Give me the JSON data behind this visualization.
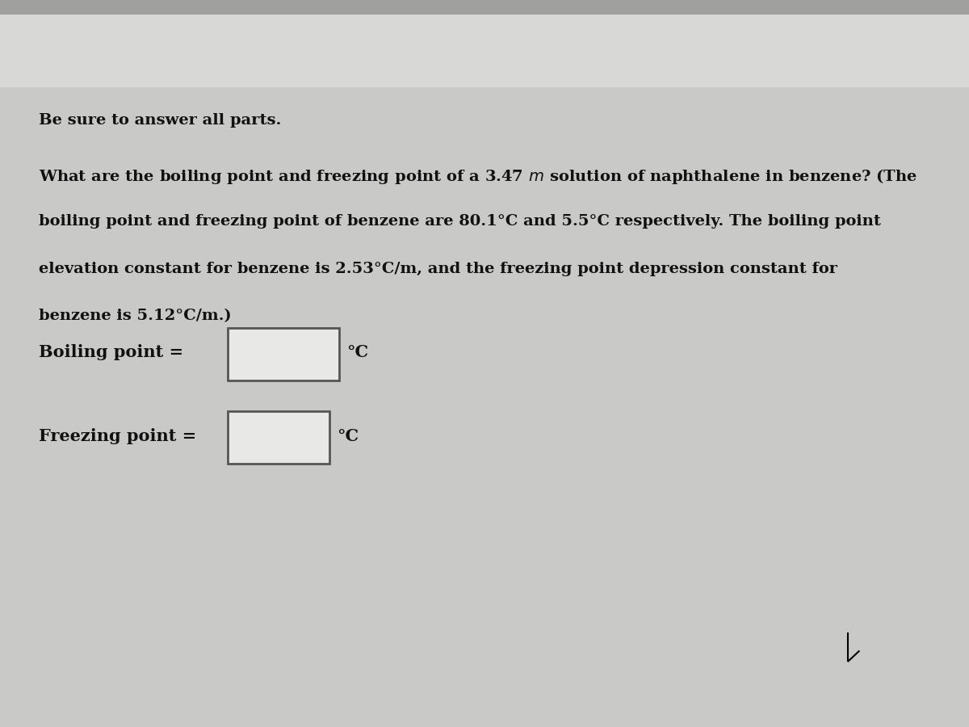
{
  "background_color": "#c9c9c7",
  "top_bar_color": "#b8b8b6",
  "header_text": "Be sure to answer all parts.",
  "question_line1_pre": "What are the boiling point and freezing point of a 3.47 ",
  "question_line1_italic": "m",
  "question_line1_post": " solution of naphthalene in benzene? (The",
  "question_line2": "boiling point and freezing point of benzene are 80.1°C and 5.5°C respectively. The boiling point",
  "question_line3": "elevation constant for benzene is 2.53°C/m, and the freezing point depression constant for",
  "question_line4": "benzene is 5.12°C/m.)",
  "boiling_label": "Boiling point =",
  "freezing_label": "Freezing point =",
  "unit": "°C",
  "box_fill_color": "#e8e8e6",
  "box_border_color": "#555555",
  "font_size_header": 14,
  "font_size_question": 14,
  "font_size_answer": 15,
  "text_color": "#111111",
  "fig_width": 12,
  "fig_height": 9
}
